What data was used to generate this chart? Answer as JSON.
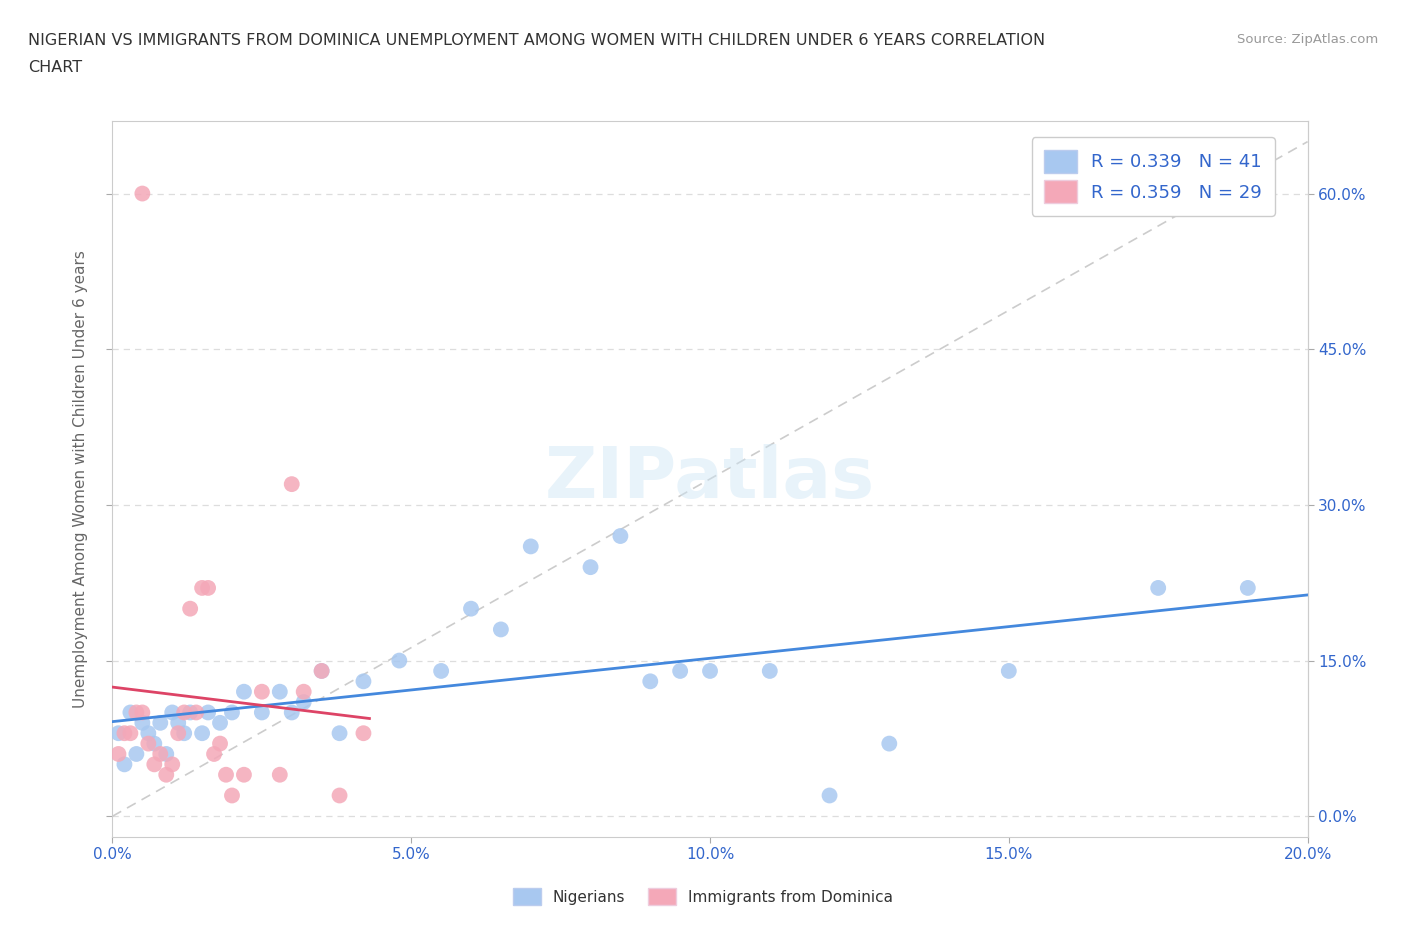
{
  "title_line1": "NIGERIAN VS IMMIGRANTS FROM DOMINICA UNEMPLOYMENT AMONG WOMEN WITH CHILDREN UNDER 6 YEARS CORRELATION",
  "title_line2": "CHART",
  "source": "Source: ZipAtlas.com",
  "ylabel": "Unemployment Among Women with Children Under 6 years",
  "xlim": [
    0.0,
    0.2
  ],
  "ylim": [
    -0.02,
    0.67
  ],
  "xticks": [
    0.0,
    0.05,
    0.1,
    0.15,
    0.2
  ],
  "xtick_labels": [
    "0.0%",
    "5.0%",
    "10.0%",
    "15.0%",
    "20.0%"
  ],
  "ytick_positions": [
    0.0,
    0.15,
    0.3,
    0.45,
    0.6
  ],
  "ytick_labels": [
    "0.0%",
    "15.0%",
    "30.0%",
    "45.0%",
    "60.0%"
  ],
  "nigerians_color": "#a8c8f0",
  "dominica_color": "#f4a8b8",
  "nigerian_line_color": "#4488dd",
  "dominica_line_color": "#dd4466",
  "R_nigerian": 0.339,
  "N_nigerian": 41,
  "R_dominica": 0.359,
  "N_dominica": 29,
  "legend_labels": [
    "Nigerians",
    "Immigrants from Dominica"
  ],
  "nigerians_x": [
    0.001,
    0.002,
    0.003,
    0.004,
    0.005,
    0.006,
    0.007,
    0.008,
    0.009,
    0.01,
    0.011,
    0.012,
    0.013,
    0.015,
    0.016,
    0.018,
    0.02,
    0.022,
    0.025,
    0.028,
    0.03,
    0.032,
    0.035,
    0.038,
    0.042,
    0.048,
    0.055,
    0.06,
    0.065,
    0.07,
    0.08,
    0.085,
    0.09,
    0.095,
    0.1,
    0.11,
    0.12,
    0.13,
    0.15,
    0.175,
    0.19
  ],
  "nigerians_y": [
    0.08,
    0.05,
    0.1,
    0.06,
    0.09,
    0.08,
    0.07,
    0.09,
    0.06,
    0.1,
    0.09,
    0.08,
    0.1,
    0.08,
    0.1,
    0.09,
    0.1,
    0.12,
    0.1,
    0.12,
    0.1,
    0.11,
    0.14,
    0.08,
    0.13,
    0.15,
    0.14,
    0.2,
    0.18,
    0.26,
    0.24,
    0.27,
    0.13,
    0.14,
    0.14,
    0.14,
    0.02,
    0.07,
    0.14,
    0.22,
    0.22
  ],
  "dominica_x": [
    0.001,
    0.002,
    0.003,
    0.004,
    0.005,
    0.006,
    0.007,
    0.008,
    0.009,
    0.01,
    0.011,
    0.012,
    0.013,
    0.014,
    0.015,
    0.016,
    0.017,
    0.018,
    0.019,
    0.02,
    0.022,
    0.025,
    0.028,
    0.03,
    0.032,
    0.035,
    0.038,
    0.042,
    0.005
  ],
  "dominica_y": [
    0.06,
    0.08,
    0.08,
    0.1,
    0.1,
    0.07,
    0.05,
    0.06,
    0.04,
    0.05,
    0.08,
    0.1,
    0.2,
    0.1,
    0.22,
    0.22,
    0.06,
    0.07,
    0.04,
    0.02,
    0.04,
    0.12,
    0.04,
    0.32,
    0.12,
    0.14,
    0.02,
    0.08,
    0.6
  ],
  "ref_line_x": [
    0.0,
    0.2
  ],
  "ref_line_y": [
    0.0,
    0.65
  ],
  "background_color": "#ffffff",
  "grid_color": "#dddddd",
  "tick_label_color": "#3366cc",
  "ylabel_color": "#666666",
  "title_color": "#333333"
}
